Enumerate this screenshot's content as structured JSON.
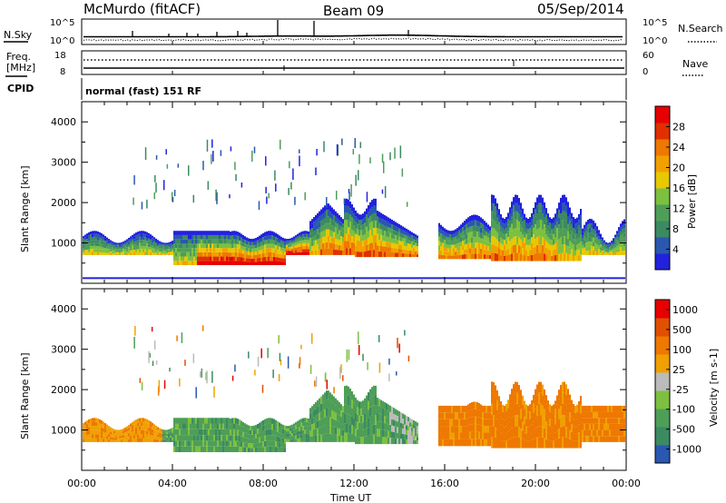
{
  "header": {
    "left_title": "McMurdo (fitACF)",
    "center_title": "Beam 09",
    "right_title": "05/Sep/2014"
  },
  "noise_panel": {
    "left_label": "N.Sky",
    "right_label": "N.Search",
    "left_ticks": [
      "10^5",
      "10^0"
    ],
    "right_ticks": [
      "10^5",
      "10^0"
    ]
  },
  "freq_panel": {
    "left_label_line1": "Freq.",
    "left_label_line2": "[MHz]",
    "right_label": "Nave",
    "left_ticks": [
      "18",
      "8"
    ],
    "right_ticks": [
      "60",
      "0"
    ],
    "cpid_label": "CPID",
    "mode_text": "normal (fast) 151 RF"
  },
  "colors": {
    "power": [
      "#2222dd",
      "#2a58b0",
      "#3b8a62",
      "#4e9e58",
      "#7dc040",
      "#e8c800",
      "#f2a000",
      "#ee7800",
      "#e03000",
      "#e80000"
    ],
    "velocity": [
      "#2a58b0",
      "#3b8a62",
      "#4e9e58",
      "#7dc040",
      "#bbbbbb",
      "#f0a000",
      "#ee7800",
      "#e05000",
      "#e80000"
    ]
  },
  "chart_data": [
    {
      "type": "heatmap",
      "name": "power",
      "title": "",
      "xlabel": "",
      "ylabel": "Slant Range [km]",
      "xlim": [
        "00:00",
        "24:00"
      ],
      "ylim": [
        0,
        4500
      ],
      "x_ticks": [
        "00:00",
        "04:00",
        "08:00",
        "12:00",
        "16:00",
        "20:00",
        "00:00"
      ],
      "y_ticks": [
        1000,
        2000,
        3000,
        4000
      ],
      "colorbar": {
        "label": "Power [dB]",
        "range": [
          0,
          32
        ],
        "ticks": [
          "4",
          "8",
          "12",
          "16",
          "20",
          "24",
          "28"
        ]
      },
      "data_gap_hours": [
        14.8,
        15.7
      ]
    },
    {
      "type": "heatmap",
      "name": "velocity",
      "title": "",
      "xlabel": "Time UT",
      "ylabel": "Slant Range [km]",
      "xlim": [
        "00:00",
        "24:00"
      ],
      "ylim": [
        0,
        4500
      ],
      "x_ticks": [
        "00:00",
        "04:00",
        "08:00",
        "12:00",
        "16:00",
        "20:00",
        "00:00"
      ],
      "y_ticks": [
        1000,
        2000,
        3000,
        4000
      ],
      "colorbar": {
        "label": "Velocity [m s-1]",
        "ticks": [
          "1000",
          "500",
          "100",
          "25",
          "-25",
          "-100",
          "-500",
          "-1000"
        ]
      },
      "data_gap_hours": [
        14.8,
        15.7
      ]
    }
  ]
}
